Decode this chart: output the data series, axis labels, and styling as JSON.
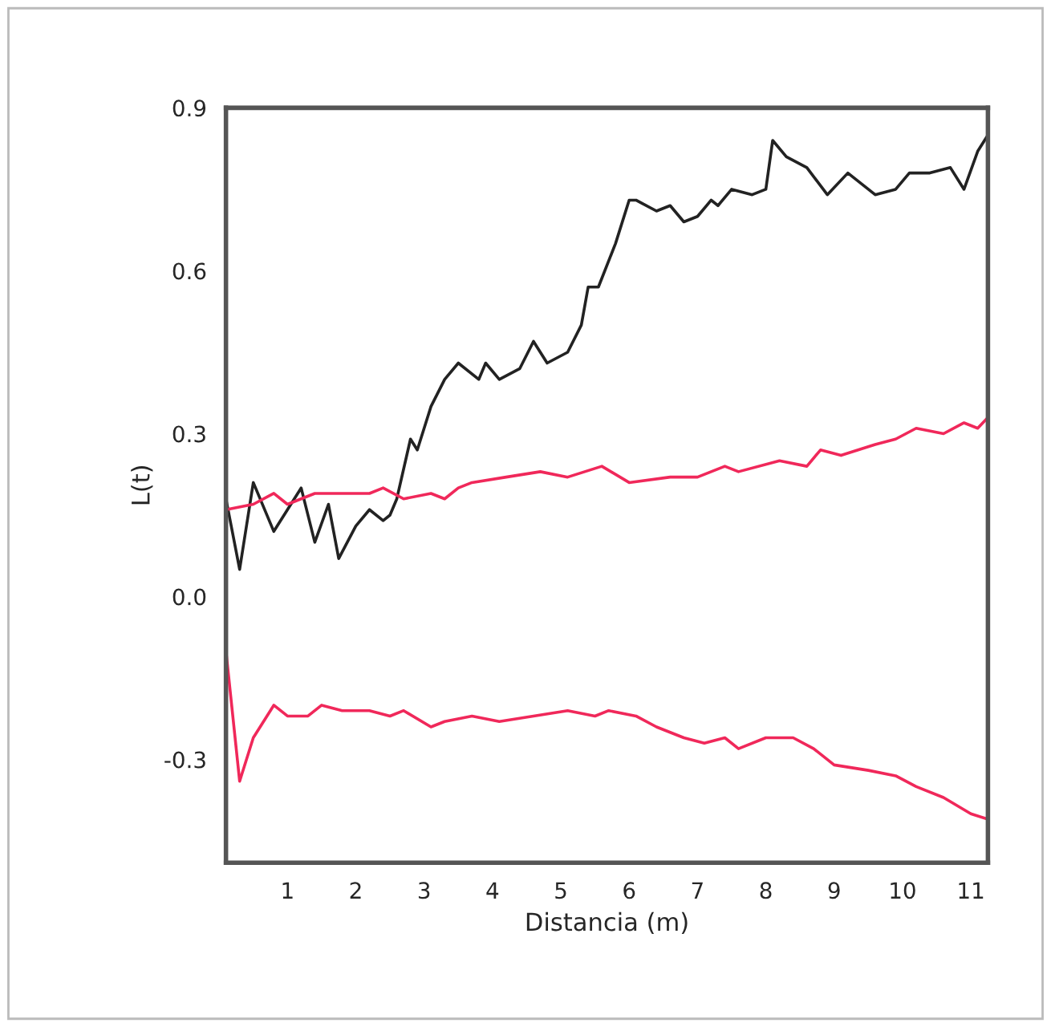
{
  "chart_data": {
    "type": "line",
    "xlabel": "Distancia (m)",
    "ylabel": "L(t)",
    "xlim": [
      0.1,
      11.25
    ],
    "ylim": [
      -0.49,
      0.9
    ],
    "xticks": [
      1,
      2,
      3,
      4,
      5,
      6,
      7,
      8,
      9,
      10,
      11
    ],
    "yticks": [
      {
        "value": -0.3,
        "label": "-0.3"
      },
      {
        "value": 0.0,
        "label": "0.0"
      },
      {
        "value": 0.3,
        "label": "0.3"
      },
      {
        "value": 0.6,
        "label": "0.6"
      },
      {
        "value": 0.9,
        "label": "0.9"
      }
    ],
    "grid": false,
    "marker": "none",
    "line_style": "solid",
    "series": [
      {
        "color": "#222222",
        "x": [
          0.1,
          0.3,
          0.5,
          0.8,
          1.0,
          1.2,
          1.4,
          1.6,
          1.75,
          2.0,
          2.2,
          2.4,
          2.5,
          2.6,
          2.8,
          2.9,
          3.1,
          3.3,
          3.5,
          3.8,
          3.9,
          4.1,
          4.4,
          4.6,
          4.8,
          5.1,
          5.3,
          5.4,
          5.55,
          5.8,
          6.0,
          6.1,
          6.4,
          6.6,
          6.8,
          7.0,
          7.2,
          7.3,
          7.5,
          7.8,
          8.0,
          8.1,
          8.3,
          8.6,
          8.9,
          9.2,
          9.6,
          9.9,
          10.1,
          10.4,
          10.7,
          10.9,
          11.1,
          11.25
        ],
        "values": [
          0.18,
          0.05,
          0.21,
          0.12,
          0.16,
          0.2,
          0.1,
          0.17,
          0.07,
          0.13,
          0.16,
          0.14,
          0.15,
          0.18,
          0.29,
          0.27,
          0.35,
          0.4,
          0.43,
          0.4,
          0.43,
          0.4,
          0.42,
          0.47,
          0.43,
          0.45,
          0.5,
          0.57,
          0.57,
          0.65,
          0.73,
          0.73,
          0.71,
          0.72,
          0.69,
          0.7,
          0.73,
          0.72,
          0.75,
          0.74,
          0.75,
          0.84,
          0.81,
          0.79,
          0.74,
          0.78,
          0.74,
          0.75,
          0.78,
          0.78,
          0.79,
          0.75,
          0.82,
          0.85
        ]
      },
      {
        "color": "#f0285a",
        "x": [
          0.1,
          0.5,
          0.8,
          1.0,
          1.4,
          2.2,
          2.4,
          2.7,
          3.1,
          3.3,
          3.5,
          3.7,
          4.2,
          4.7,
          5.1,
          5.6,
          6.0,
          6.6,
          7.0,
          7.4,
          7.6,
          8.2,
          8.6,
          8.8,
          9.1,
          9.6,
          9.9,
          10.2,
          10.6,
          10.9,
          11.1,
          11.25
        ],
        "values": [
          0.16,
          0.17,
          0.19,
          0.17,
          0.19,
          0.19,
          0.2,
          0.18,
          0.19,
          0.18,
          0.2,
          0.21,
          0.22,
          0.23,
          0.22,
          0.24,
          0.21,
          0.22,
          0.22,
          0.24,
          0.23,
          0.25,
          0.24,
          0.27,
          0.26,
          0.28,
          0.29,
          0.31,
          0.3,
          0.32,
          0.31,
          0.33
        ]
      },
      {
        "color": "#f0285a",
        "x": [
          0.1,
          0.3,
          0.5,
          0.8,
          1.0,
          1.3,
          1.5,
          1.8,
          2.2,
          2.5,
          2.7,
          3.1,
          3.3,
          3.7,
          4.1,
          4.6,
          5.1,
          5.5,
          5.7,
          6.1,
          6.4,
          6.8,
          7.1,
          7.4,
          7.6,
          8.0,
          8.4,
          8.7,
          9.0,
          9.5,
          9.9,
          10.2,
          10.6,
          11.0,
          11.25
        ],
        "values": [
          -0.1,
          -0.34,
          -0.26,
          -0.2,
          -0.22,
          -0.22,
          -0.2,
          -0.21,
          -0.21,
          -0.22,
          -0.21,
          -0.24,
          -0.23,
          -0.22,
          -0.23,
          -0.22,
          -0.21,
          -0.22,
          -0.21,
          -0.22,
          -0.24,
          -0.26,
          -0.27,
          -0.26,
          -0.28,
          -0.26,
          -0.26,
          -0.28,
          -0.31,
          -0.32,
          -0.33,
          -0.35,
          -0.37,
          -0.4,
          -0.41
        ]
      }
    ]
  }
}
